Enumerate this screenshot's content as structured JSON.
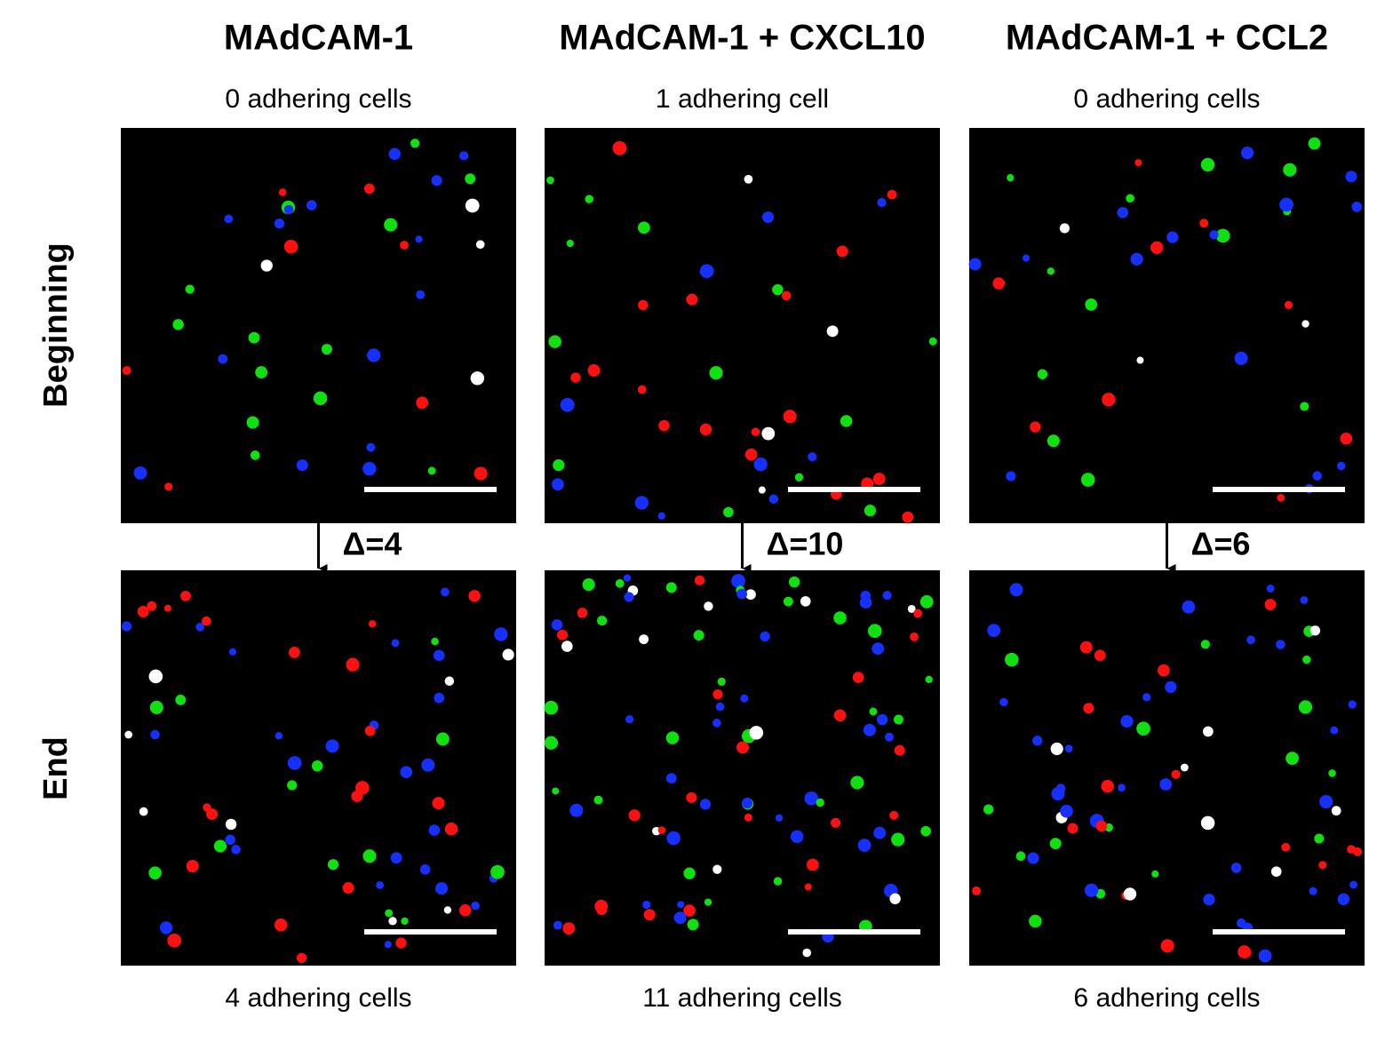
{
  "rows": [
    "Beginning",
    "End"
  ],
  "columns": [
    {
      "title": "MAdCAM-1",
      "beginning_label": "0 adhering cells",
      "end_label": "4 adhering cells",
      "delta": "Δ=4"
    },
    {
      "title": "MAdCAM-1 + CXCL10",
      "beginning_label": "1 adhering cell",
      "end_label": "11 adhering cells",
      "delta": "Δ=10"
    },
    {
      "title": "MAdCAM-1 + CCL2",
      "beginning_label": "0 adhering cells",
      "end_label": "6 adhering cells",
      "delta": "Δ=6"
    }
  ]
}
